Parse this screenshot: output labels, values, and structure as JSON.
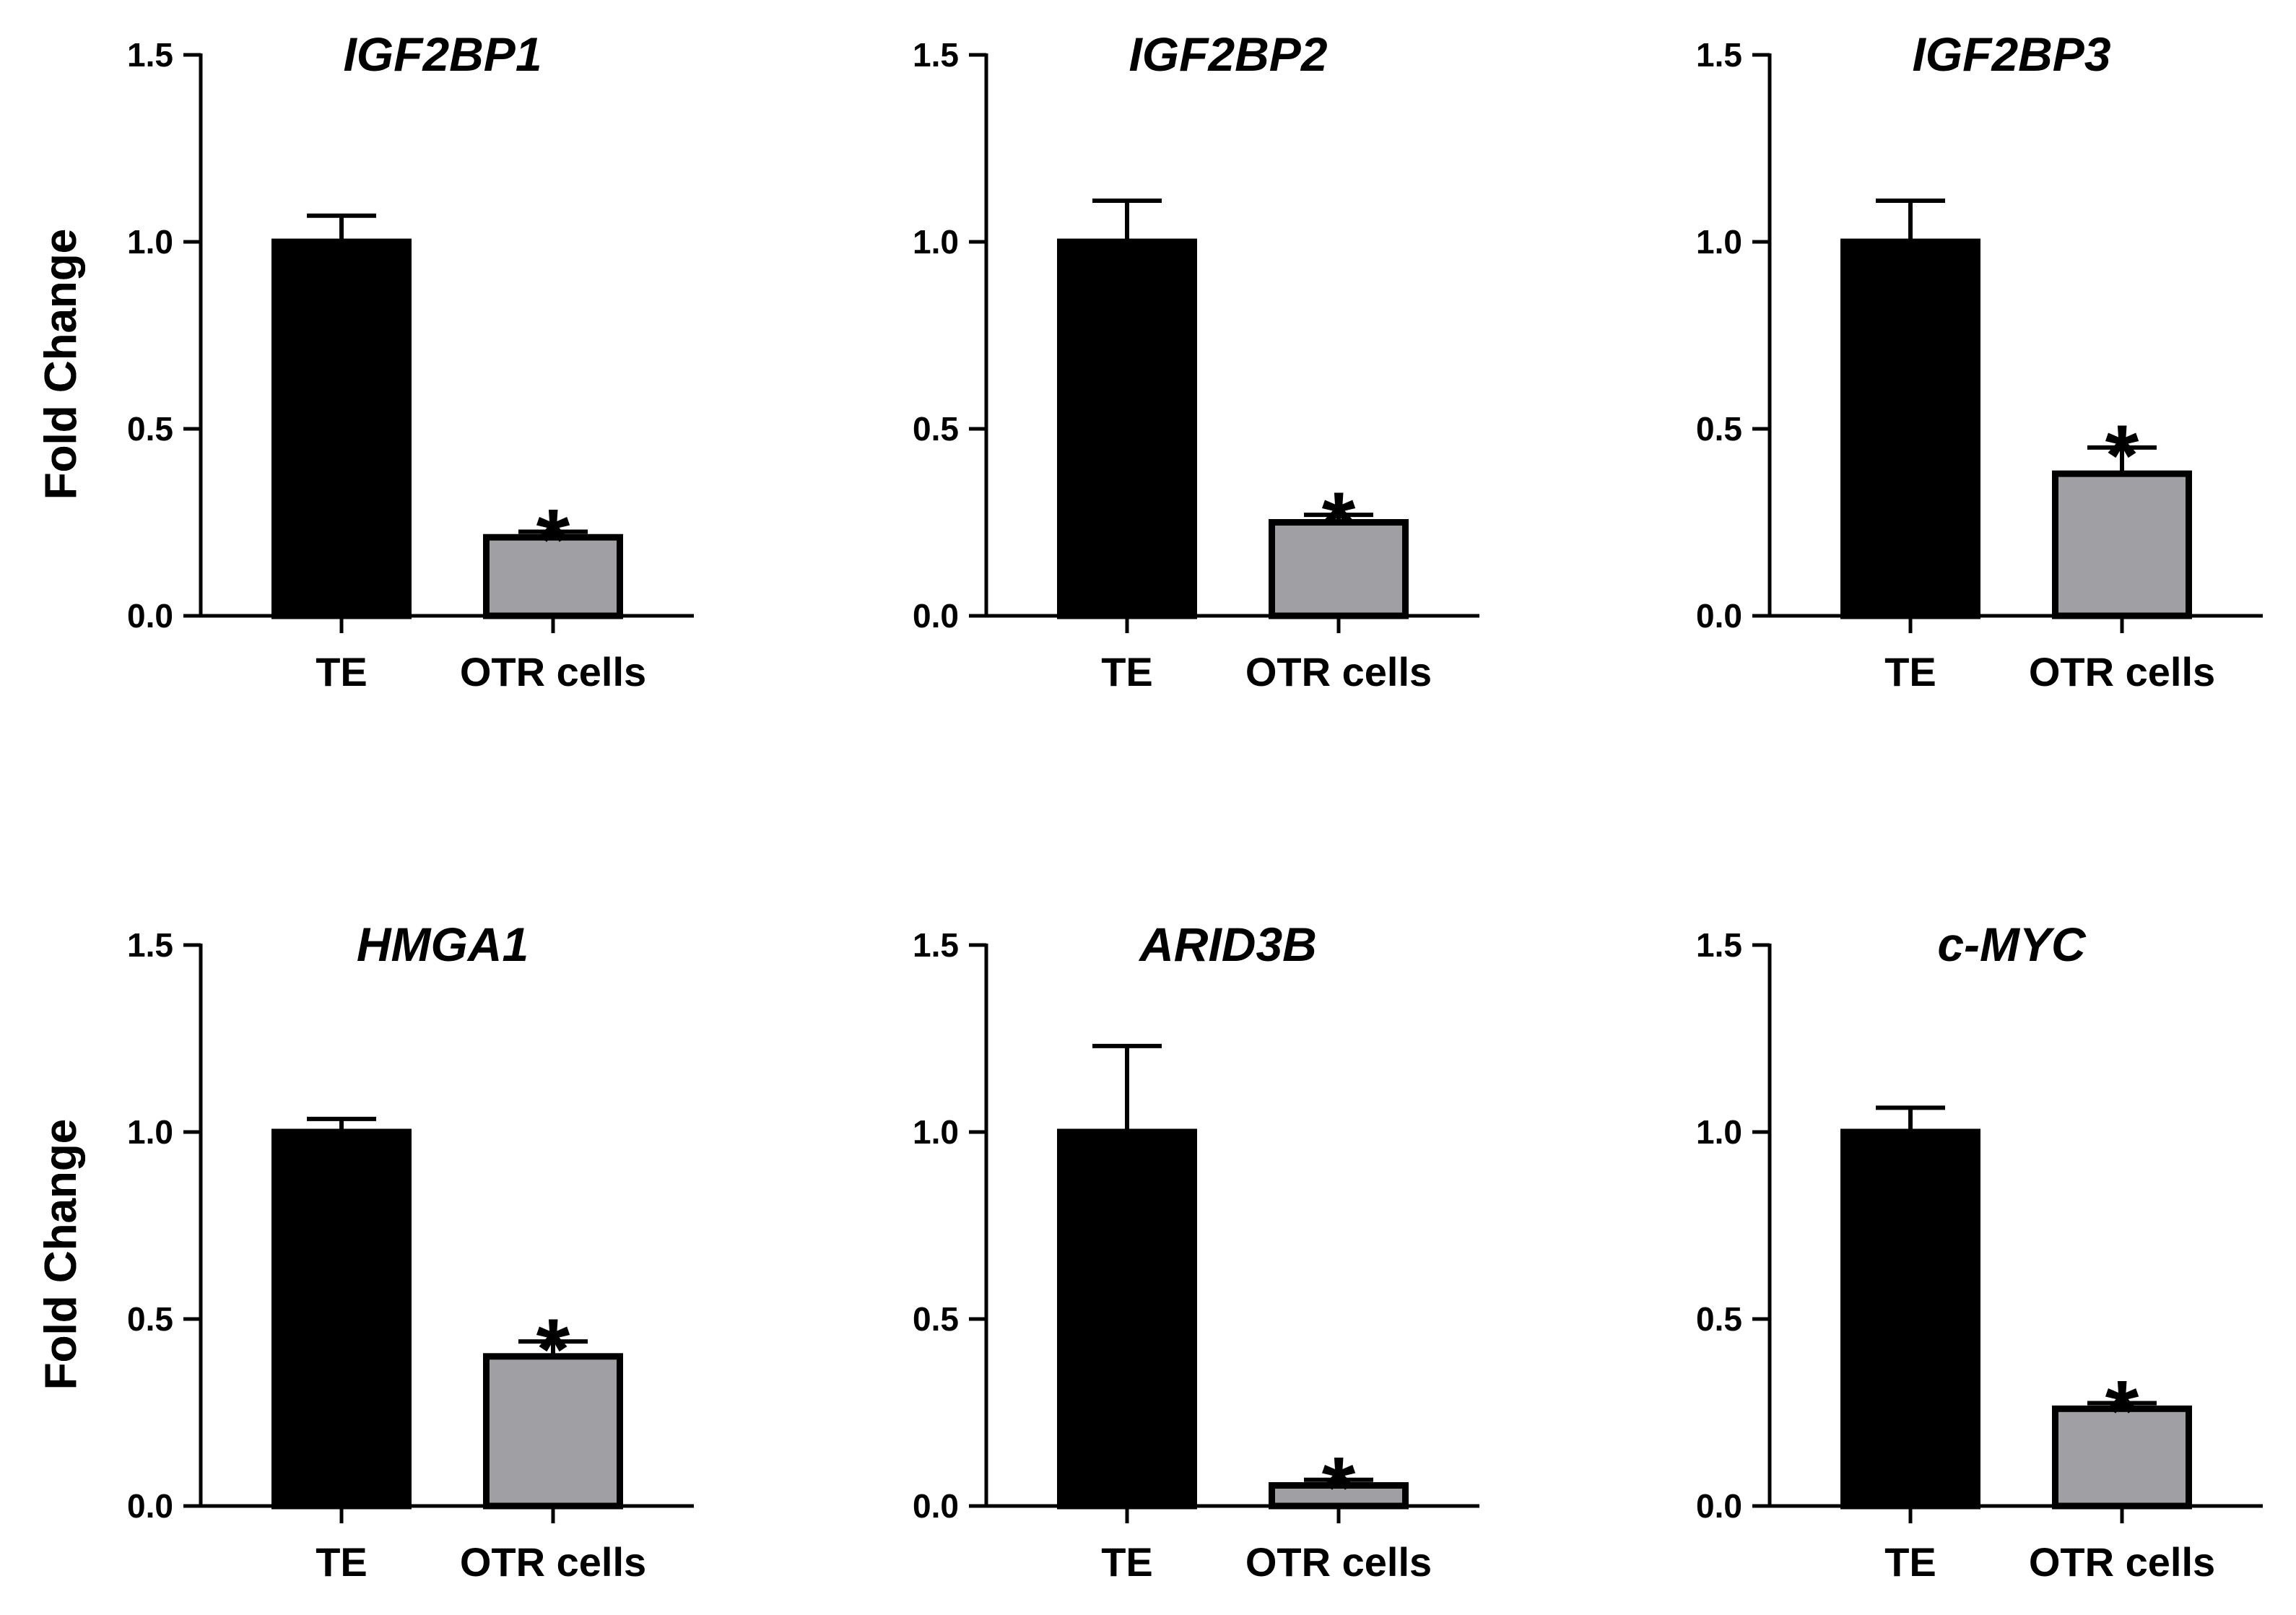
{
  "colors": {
    "te_bar": "#000000",
    "otr_bar": "#a0a0a4",
    "axis": "#000000"
  },
  "chart_data": [
    {
      "type": "bar",
      "title": "IGF2BP1",
      "ylabel": "Fold Change",
      "ylim": [
        0,
        1.5
      ],
      "yticks": [
        "0.0",
        "0.5",
        "1.0",
        "1.5"
      ],
      "categories": [
        "TE",
        "OTR cells"
      ],
      "values": [
        1.0,
        0.21
      ],
      "errors": [
        0.07,
        0.015
      ],
      "annotations": [
        "",
        "*"
      ]
    },
    {
      "type": "bar",
      "title": "IGF2BP2",
      "ylabel": "Fold Change",
      "ylim": [
        0,
        1.5
      ],
      "yticks": [
        "0.0",
        "0.5",
        "1.0",
        "1.5"
      ],
      "categories": [
        "TE",
        "OTR cells"
      ],
      "values": [
        1.0,
        0.25
      ],
      "errors": [
        0.11,
        0.02
      ],
      "annotations": [
        "",
        "*"
      ]
    },
    {
      "type": "bar",
      "title": "IGF2BP3",
      "ylabel": "Fold Change",
      "ylim": [
        0,
        1.5
      ],
      "yticks": [
        "0.0",
        "0.5",
        "1.0",
        "1.5"
      ],
      "categories": [
        "TE",
        "OTR cells"
      ],
      "values": [
        1.0,
        0.38
      ],
      "errors": [
        0.11,
        0.07
      ],
      "annotations": [
        "",
        "*"
      ]
    },
    {
      "type": "bar",
      "title": "HMGA1",
      "ylabel": "Fold Change",
      "ylim": [
        0,
        1.5
      ],
      "yticks": [
        "0.0",
        "0.5",
        "1.0",
        "1.5"
      ],
      "categories": [
        "TE",
        "OTR cells"
      ],
      "values": [
        1.0,
        0.4
      ],
      "errors": [
        0.035,
        0.04
      ],
      "annotations": [
        "",
        "*"
      ]
    },
    {
      "type": "bar",
      "title": "ARID3B",
      "ylabel": "Fold Change",
      "ylim": [
        0,
        1.5
      ],
      "yticks": [
        "0.0",
        "0.5",
        "1.0",
        "1.5"
      ],
      "categories": [
        "TE",
        "OTR cells"
      ],
      "values": [
        1.0,
        0.055
      ],
      "errors": [
        0.23,
        0.015
      ],
      "annotations": [
        "",
        "*"
      ]
    },
    {
      "type": "bar",
      "title": "c-MYC",
      "ylabel": "Fold Change",
      "ylim": [
        0,
        1.5
      ],
      "yticks": [
        "0.0",
        "0.5",
        "1.0",
        "1.5"
      ],
      "categories": [
        "TE",
        "OTR cells"
      ],
      "values": [
        1.0,
        0.26
      ],
      "errors": [
        0.065,
        0.015
      ],
      "annotations": [
        "",
        "*"
      ]
    }
  ]
}
